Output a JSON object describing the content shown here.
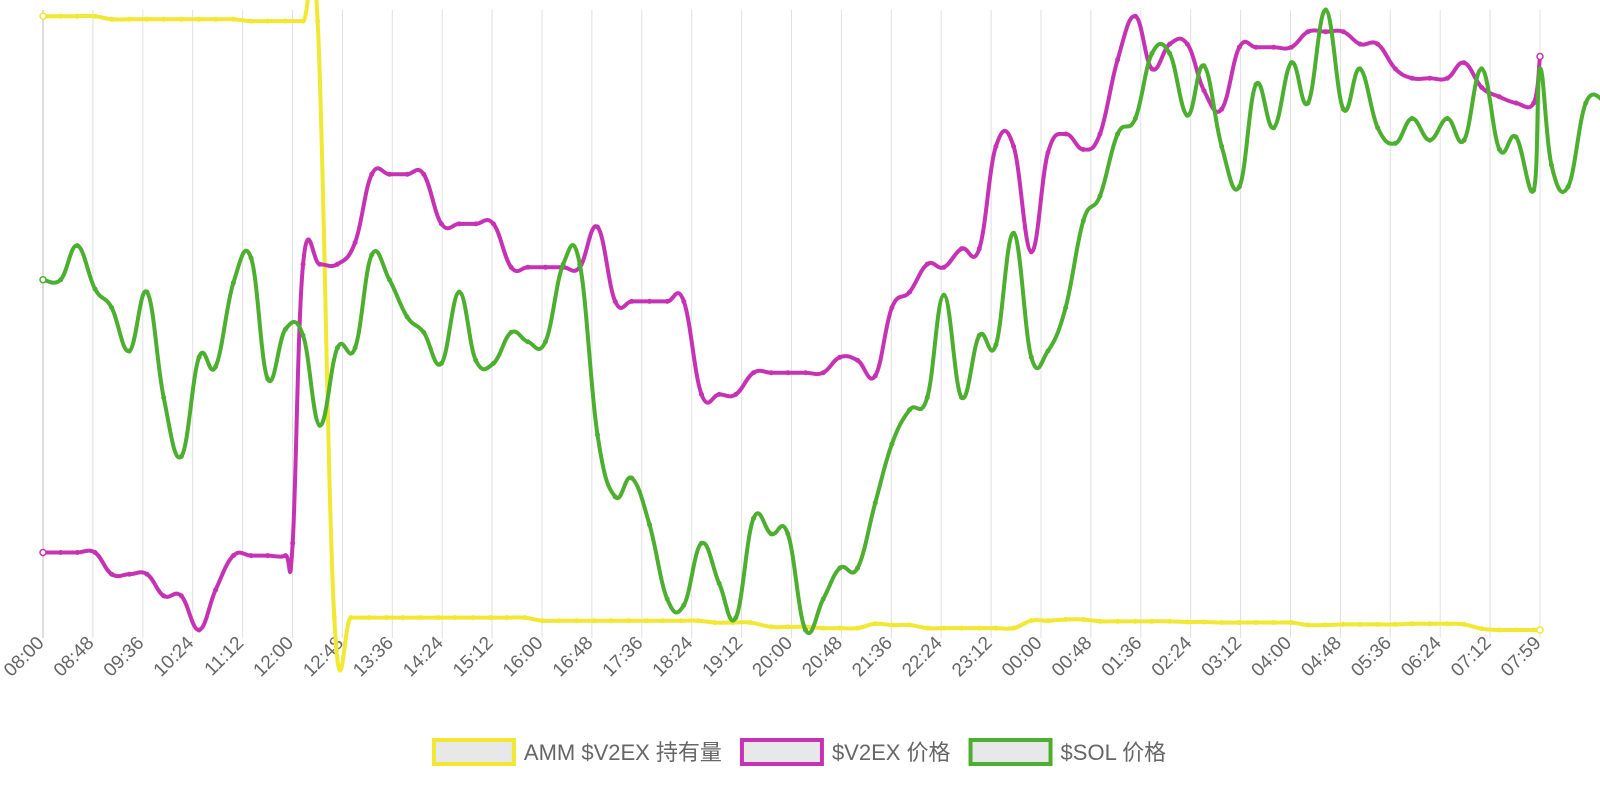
{
  "chart_data": {
    "type": "line",
    "title": "",
    "xlabel": "",
    "ylabel": "",
    "grid": true,
    "y_axis_labels_visible": false,
    "legend_position": "bottom-center",
    "x_tick_labels": [
      "08:00",
      "08:48",
      "09:36",
      "10:24",
      "11:12",
      "12:00",
      "12:48",
      "13:36",
      "14:24",
      "15:12",
      "16:00",
      "16:48",
      "17:36",
      "18:24",
      "19:12",
      "20:00",
      "20:48",
      "21:36",
      "22:24",
      "23:12",
      "00:00",
      "00:48",
      "01:36",
      "02:24",
      "03:12",
      "04:00",
      "04:48",
      "05:36",
      "06:24",
      "07:12",
      "07:59"
    ],
    "x_range": [
      0,
      1439
    ],
    "series": [
      {
        "name": "AMM $V2EX 持有量",
        "color": "#f0e832",
        "values": [
          [
            0,
            0.99
          ],
          [
            17,
            0.99
          ],
          [
            33,
            0.99
          ],
          [
            50,
            0.99
          ],
          [
            66,
            0.985
          ],
          [
            83,
            0.985
          ],
          [
            100,
            0.985
          ],
          [
            116,
            0.985
          ],
          [
            133,
            0.985
          ],
          [
            150,
            0.985
          ],
          [
            166,
            0.985
          ],
          [
            183,
            0.985
          ],
          [
            200,
            0.982
          ],
          [
            216,
            0.982
          ],
          [
            233,
            0.982
          ],
          [
            250,
            0.982
          ],
          [
            264,
            0.982
          ],
          [
            280,
            0.02
          ],
          [
            296,
            0.02
          ],
          [
            313,
            0.02
          ],
          [
            330,
            0.02
          ],
          [
            346,
            0.02
          ],
          [
            363,
            0.02
          ],
          [
            380,
            0.02
          ],
          [
            396,
            0.02
          ],
          [
            413,
            0.02
          ],
          [
            430,
            0.02
          ],
          [
            446,
            0.02
          ],
          [
            463,
            0.02
          ],
          [
            480,
            0.015
          ],
          [
            496,
            0.015
          ],
          [
            513,
            0.015
          ],
          [
            530,
            0.015
          ],
          [
            546,
            0.015
          ],
          [
            563,
            0.015
          ],
          [
            580,
            0.015
          ],
          [
            596,
            0.015
          ],
          [
            613,
            0.015
          ],
          [
            630,
            0.015
          ],
          [
            646,
            0.012
          ],
          [
            663,
            0.012
          ],
          [
            680,
            0.012
          ],
          [
            700,
            0.005
          ],
          [
            716,
            0.005
          ],
          [
            733,
            0.005
          ],
          [
            750,
            0.003
          ],
          [
            766,
            0.003
          ],
          [
            783,
            0.003
          ],
          [
            800,
            0.01
          ],
          [
            816,
            0.008
          ],
          [
            833,
            0.008
          ],
          [
            850,
            0.003
          ],
          [
            866,
            0.003
          ],
          [
            883,
            0.003
          ],
          [
            900,
            0.003
          ],
          [
            916,
            0.003
          ],
          [
            933,
            0.003
          ],
          [
            950,
            0.015
          ],
          [
            966,
            0.015
          ],
          [
            983,
            0.017
          ],
          [
            1000,
            0.017
          ],
          [
            1016,
            0.014
          ],
          [
            1033,
            0.014
          ],
          [
            1050,
            0.014
          ],
          [
            1066,
            0.014
          ],
          [
            1083,
            0.014
          ],
          [
            1100,
            0.013
          ],
          [
            1116,
            0.013
          ],
          [
            1133,
            0.012
          ],
          [
            1150,
            0.012
          ],
          [
            1166,
            0.012
          ],
          [
            1183,
            0.012
          ],
          [
            1200,
            0.012
          ],
          [
            1216,
            0.008
          ],
          [
            1233,
            0.008
          ],
          [
            1250,
            0.009
          ],
          [
            1266,
            0.009
          ],
          [
            1283,
            0.009
          ],
          [
            1300,
            0.009
          ],
          [
            1316,
            0.01
          ],
          [
            1333,
            0.01
          ],
          [
            1350,
            0.01
          ],
          [
            1366,
            0.009
          ],
          [
            1383,
            0.002
          ],
          [
            1400,
            0.0
          ],
          [
            1416,
            0.0
          ],
          [
            1433,
            0.0
          ],
          [
            1439,
            0.0
          ]
        ]
      },
      {
        "name": "$V2EX 价格",
        "color": "#c632b4",
        "values": [
          [
            0,
            0.125
          ],
          [
            17,
            0.125
          ],
          [
            33,
            0.125
          ],
          [
            50,
            0.125
          ],
          [
            66,
            0.09
          ],
          [
            83,
            0.09
          ],
          [
            100,
            0.09
          ],
          [
            116,
            0.055
          ],
          [
            133,
            0.055
          ],
          [
            150,
            0.0
          ],
          [
            166,
            0.065
          ],
          [
            183,
            0.12
          ],
          [
            200,
            0.12
          ],
          [
            216,
            0.12
          ],
          [
            233,
            0.12
          ],
          [
            240,
            0.14
          ],
          [
            250,
            0.59
          ],
          [
            266,
            0.59
          ],
          [
            283,
            0.59
          ],
          [
            300,
            0.625
          ],
          [
            316,
            0.735
          ],
          [
            333,
            0.735
          ],
          [
            350,
            0.735
          ],
          [
            366,
            0.735
          ],
          [
            383,
            0.655
          ],
          [
            400,
            0.655
          ],
          [
            416,
            0.655
          ],
          [
            433,
            0.655
          ],
          [
            450,
            0.585
          ],
          [
            466,
            0.585
          ],
          [
            483,
            0.585
          ],
          [
            500,
            0.585
          ],
          [
            516,
            0.585
          ],
          [
            533,
            0.65
          ],
          [
            550,
            0.53
          ],
          [
            566,
            0.53
          ],
          [
            583,
            0.53
          ],
          [
            600,
            0.53
          ],
          [
            616,
            0.53
          ],
          [
            633,
            0.38
          ],
          [
            650,
            0.38
          ],
          [
            666,
            0.38
          ],
          [
            683,
            0.415
          ],
          [
            700,
            0.415
          ],
          [
            716,
            0.415
          ],
          [
            733,
            0.415
          ],
          [
            750,
            0.415
          ],
          [
            766,
            0.44
          ],
          [
            783,
            0.435
          ],
          [
            800,
            0.41
          ],
          [
            816,
            0.52
          ],
          [
            833,
            0.545
          ],
          [
            850,
            0.59
          ],
          [
            866,
            0.585
          ],
          [
            883,
            0.615
          ],
          [
            900,
            0.615
          ],
          [
            916,
            0.78
          ],
          [
            933,
            0.78
          ],
          [
            950,
            0.61
          ],
          [
            966,
            0.77
          ],
          [
            983,
            0.8
          ],
          [
            1000,
            0.775
          ],
          [
            1016,
            0.8
          ],
          [
            1033,
            0.92
          ],
          [
            1050,
            0.99
          ],
          [
            1066,
            0.905
          ],
          [
            1083,
            0.945
          ],
          [
            1100,
            0.945
          ],
          [
            1116,
            0.87
          ],
          [
            1133,
            0.84
          ],
          [
            1150,
            0.94
          ],
          [
            1166,
            0.94
          ],
          [
            1183,
            0.94
          ],
          [
            1200,
            0.94
          ],
          [
            1216,
            0.965
          ],
          [
            1233,
            0.965
          ],
          [
            1250,
            0.965
          ],
          [
            1266,
            0.945
          ],
          [
            1283,
            0.945
          ],
          [
            1300,
            0.905
          ],
          [
            1316,
            0.89
          ],
          [
            1333,
            0.89
          ],
          [
            1350,
            0.89
          ],
          [
            1366,
            0.915
          ],
          [
            1383,
            0.875
          ],
          [
            1400,
            0.86
          ],
          [
            1416,
            0.85
          ],
          [
            1433,
            0.85
          ],
          [
            1439,
            0.925
          ]
        ]
      },
      {
        "name": "$SOL 价格",
        "color": "#4caf30",
        "values": [
          [
            0,
            0.565
          ],
          [
            17,
            0.565
          ],
          [
            33,
            0.62
          ],
          [
            50,
            0.55
          ],
          [
            66,
            0.52
          ],
          [
            83,
            0.45
          ],
          [
            100,
            0.545
          ],
          [
            116,
            0.375
          ],
          [
            133,
            0.28
          ],
          [
            150,
            0.44
          ],
          [
            166,
            0.425
          ],
          [
            183,
            0.56
          ],
          [
            200,
            0.6
          ],
          [
            216,
            0.405
          ],
          [
            233,
            0.485
          ],
          [
            250,
            0.475
          ],
          [
            266,
            0.33
          ],
          [
            283,
            0.455
          ],
          [
            300,
            0.455
          ],
          [
            316,
            0.605
          ],
          [
            333,
            0.565
          ],
          [
            350,
            0.505
          ],
          [
            366,
            0.48
          ],
          [
            383,
            0.43
          ],
          [
            400,
            0.545
          ],
          [
            416,
            0.435
          ],
          [
            433,
            0.43
          ],
          [
            450,
            0.48
          ],
          [
            466,
            0.465
          ],
          [
            483,
            0.465
          ],
          [
            500,
            0.59
          ],
          [
            516,
            0.59
          ],
          [
            533,
            0.315
          ],
          [
            550,
            0.215
          ],
          [
            566,
            0.245
          ],
          [
            583,
            0.17
          ],
          [
            600,
            0.05
          ],
          [
            616,
            0.04
          ],
          [
            633,
            0.14
          ],
          [
            650,
            0.075
          ],
          [
            666,
            0.02
          ],
          [
            683,
            0.18
          ],
          [
            700,
            0.155
          ],
          [
            716,
            0.155
          ],
          [
            733,
            0.0
          ],
          [
            750,
            0.05
          ],
          [
            766,
            0.1
          ],
          [
            783,
            0.1
          ],
          [
            800,
            0.205
          ],
          [
            816,
            0.3
          ],
          [
            833,
            0.355
          ],
          [
            850,
            0.375
          ],
          [
            866,
            0.54
          ],
          [
            883,
            0.375
          ],
          [
            900,
            0.475
          ],
          [
            916,
            0.46
          ],
          [
            933,
            0.64
          ],
          [
            950,
            0.44
          ],
          [
            966,
            0.45
          ],
          [
            983,
            0.52
          ],
          [
            1000,
            0.66
          ],
          [
            1016,
            0.7
          ],
          [
            1033,
            0.8
          ],
          [
            1050,
            0.825
          ],
          [
            1066,
            0.93
          ],
          [
            1083,
            0.93
          ],
          [
            1100,
            0.83
          ],
          [
            1116,
            0.91
          ],
          [
            1133,
            0.78
          ],
          [
            1150,
            0.715
          ],
          [
            1166,
            0.88
          ],
          [
            1183,
            0.81
          ],
          [
            1200,
            0.915
          ],
          [
            1216,
            0.85
          ],
          [
            1233,
            1.0
          ],
          [
            1250,
            0.84
          ],
          [
            1266,
            0.905
          ],
          [
            1283,
            0.81
          ],
          [
            1300,
            0.785
          ],
          [
            1316,
            0.825
          ],
          [
            1333,
            0.79
          ],
          [
            1350,
            0.825
          ],
          [
            1366,
            0.79
          ],
          [
            1383,
            0.905
          ],
          [
            1400,
            0.775
          ],
          [
            1416,
            0.795
          ],
          [
            1433,
            0.71
          ],
          [
            1450,
            0.75
          ],
          [
            1466,
            0.715
          ],
          [
            1483,
            0.85
          ],
          [
            1500,
            0.855
          ],
          [
            1439,
            0.905
          ]
        ]
      }
    ],
    "y_range": [
      0,
      1
    ]
  }
}
